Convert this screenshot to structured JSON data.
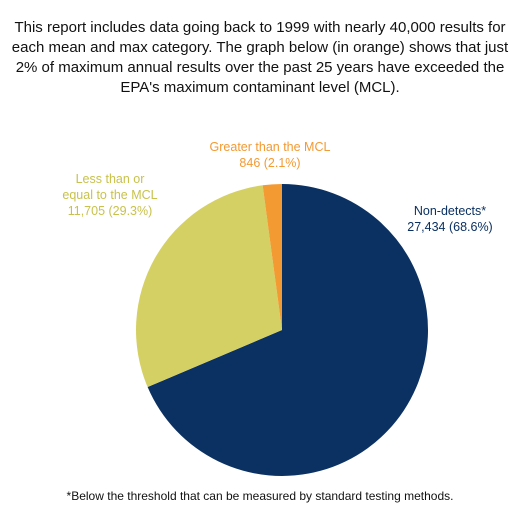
{
  "intro": "This report includes data going back to 1999 with nearly 40,000 results for each mean and max category. The graph below (in orange) shows that just 2% of maximum annual results over the past 25 years have exceeded the EPA's maximum contaminant level (MCL).",
  "chart_data": {
    "type": "pie",
    "categories": [
      "Non-detects*",
      "Less than or equal to the MCL",
      "Greater than the MCL"
    ],
    "values": [
      27434,
      11705,
      846
    ],
    "value_labels": [
      "27,434 (68.6%)",
      "11,705 (29.3%)",
      "846 (2.1%)"
    ],
    "colors": [
      "#0b3162",
      "#d5d063",
      "#f39a33"
    ],
    "label_colors": [
      "#0b3162",
      "#c8c24c",
      "#f39a33"
    ]
  },
  "footnote": "*Below the threshold that can be measured by standard testing methods."
}
